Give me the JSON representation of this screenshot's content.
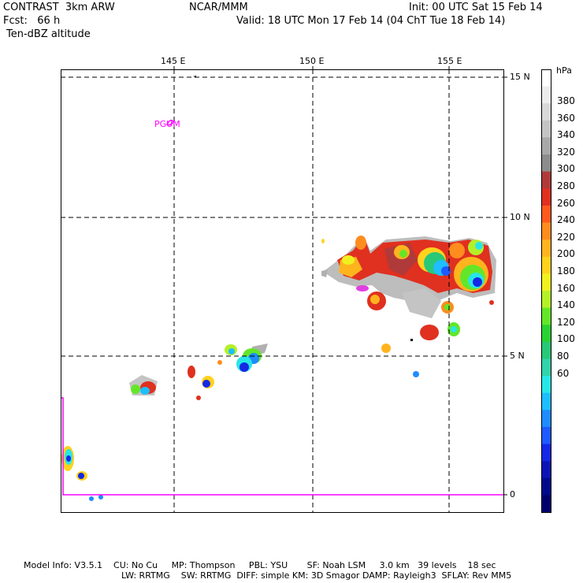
{
  "header": {
    "model": "CONTRAST  3km ARW",
    "center": "NCAR/MMM",
    "init": "Init: 00 UTC Sat 15 Feb 14",
    "fcst": "Fcst:   66 h",
    "valid": "Valid: 18 UTC Mon 17 Feb 14 (04 ChT Tue 18 Feb 14)",
    "field": "Ten-dBZ altitude"
  },
  "map": {
    "lon_labels": [
      "145 E",
      "150 E",
      "155 E"
    ],
    "lat_labels": [
      "15 N",
      "10 N",
      "5 N",
      "0"
    ],
    "place_label": "PGUM",
    "colors": {
      "frame": "#000000",
      "grid": "#000000",
      "coast": "#ff00ff"
    }
  },
  "colorbar": {
    "unit": "hPa",
    "labels": [
      "380",
      "360",
      "340",
      "320",
      "300",
      "280",
      "260",
      "240",
      "220",
      "200",
      "180",
      "160",
      "140",
      "120",
      "100",
      "80",
      "60"
    ],
    "colors": [
      "#ffffff",
      "#ececec",
      "#d8d8d8",
      "#c4c4c4",
      "#a8a8a8",
      "#8c8c8c",
      "#b03a3a",
      "#e03020",
      "#ff5a1e",
      "#ff8c1e",
      "#ffb41e",
      "#ffd21e",
      "#f0f020",
      "#b4f028",
      "#64e628",
      "#28d232",
      "#28c878",
      "#32d2aa",
      "#28e6e6",
      "#1ebeff",
      "#1e8cff",
      "#1e5aff",
      "#1428e6",
      "#0a14b4",
      "#000a8c",
      "#00006e"
    ]
  },
  "footer": {
    "line1": "Model Info: V3.5.1    CU: No Cu     MP: Thompson     PBL: YSU       SF: Noah LSM     3.0 km   39 levels    18 sec",
    "line2": "LW: RRTMG    SW: RRTMG  DIFF: simple KM: 3D Smagor DAMP: Rayleigh3  SFLAY: Rev MM5"
  }
}
